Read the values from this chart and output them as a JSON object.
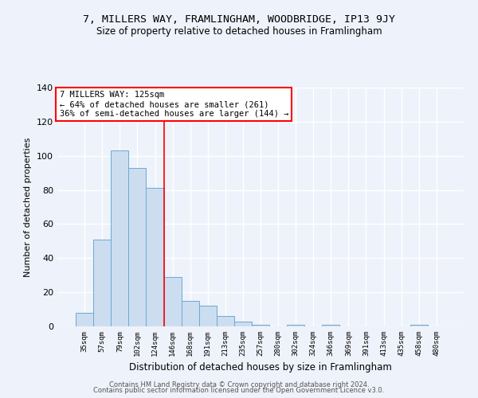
{
  "title": "7, MILLERS WAY, FRAMLINGHAM, WOODBRIDGE, IP13 9JY",
  "subtitle": "Size of property relative to detached houses in Framlingham",
  "xlabel": "Distribution of detached houses by size in Framlingham",
  "ylabel": "Number of detached properties",
  "bar_color": "#ccddf0",
  "bar_edge_color": "#6aaad4",
  "categories": [
    "35sqm",
    "57sqm",
    "79sqm",
    "102sqm",
    "124sqm",
    "146sqm",
    "168sqm",
    "191sqm",
    "213sqm",
    "235sqm",
    "257sqm",
    "280sqm",
    "302sqm",
    "324sqm",
    "346sqm",
    "369sqm",
    "391sqm",
    "413sqm",
    "435sqm",
    "458sqm",
    "480sqm"
  ],
  "values": [
    8,
    51,
    103,
    93,
    81,
    29,
    15,
    12,
    6,
    3,
    1,
    0,
    1,
    0,
    1,
    0,
    0,
    0,
    0,
    1,
    0
  ],
  "red_line_x": 4.5,
  "annotation_line1": "7 MILLERS WAY: 125sqm",
  "annotation_line2": "← 64% of detached houses are smaller (261)",
  "annotation_line3": "36% of semi-detached houses are larger (144) →",
  "annotation_box_color": "white",
  "annotation_box_edge_color": "red",
  "red_line_color": "red",
  "ylim": [
    0,
    140
  ],
  "yticks": [
    0,
    20,
    40,
    60,
    80,
    100,
    120,
    140
  ],
  "footer_line1": "Contains HM Land Registry data © Crown copyright and database right 2024.",
  "footer_line2": "Contains public sector information licensed under the Open Government Licence v3.0.",
  "background_color": "#eef2fa",
  "grid_color": "white"
}
